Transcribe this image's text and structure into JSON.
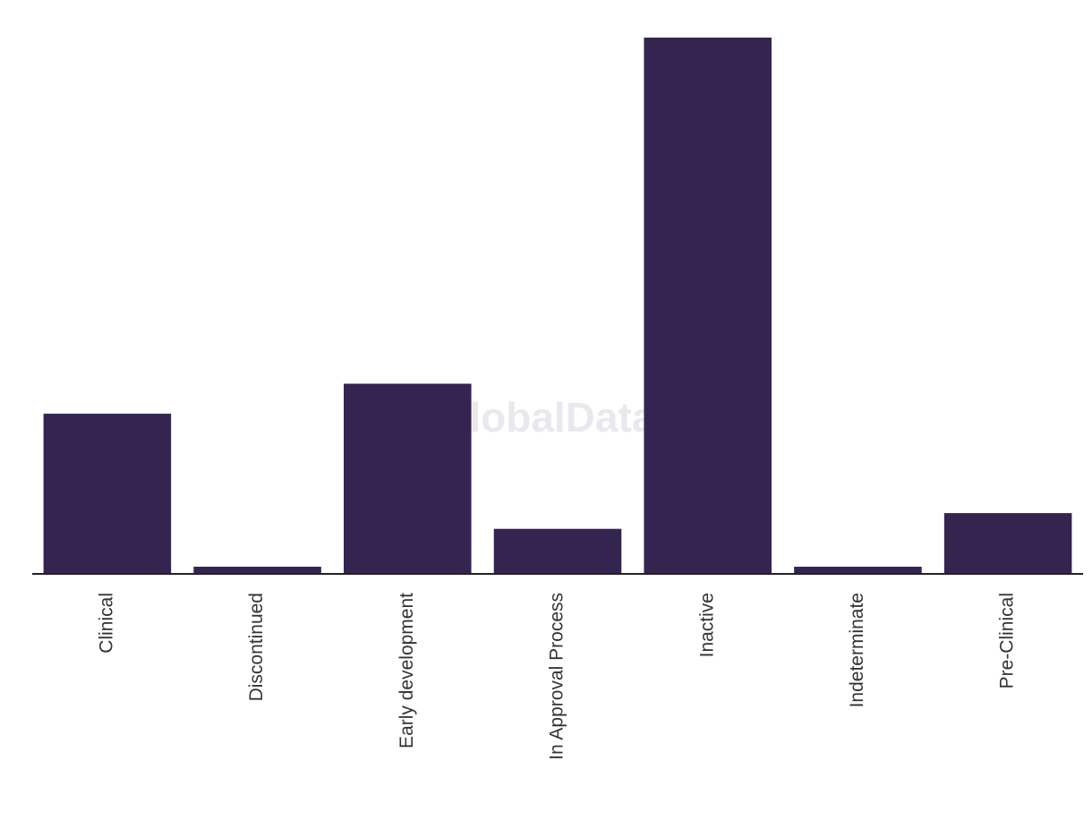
{
  "chart_data": {
    "type": "bar",
    "watermark": "GlobalData",
    "categories": [
      "Clinical",
      "Discontinued",
      "Early development",
      "In Approval Process",
      "Inactive",
      "Indeterminate",
      "Pre-Clinical"
    ],
    "values": [
      22.4,
      1,
      26.6,
      6.3,
      75,
      1,
      8.5
    ],
    "color": "#352450"
  }
}
